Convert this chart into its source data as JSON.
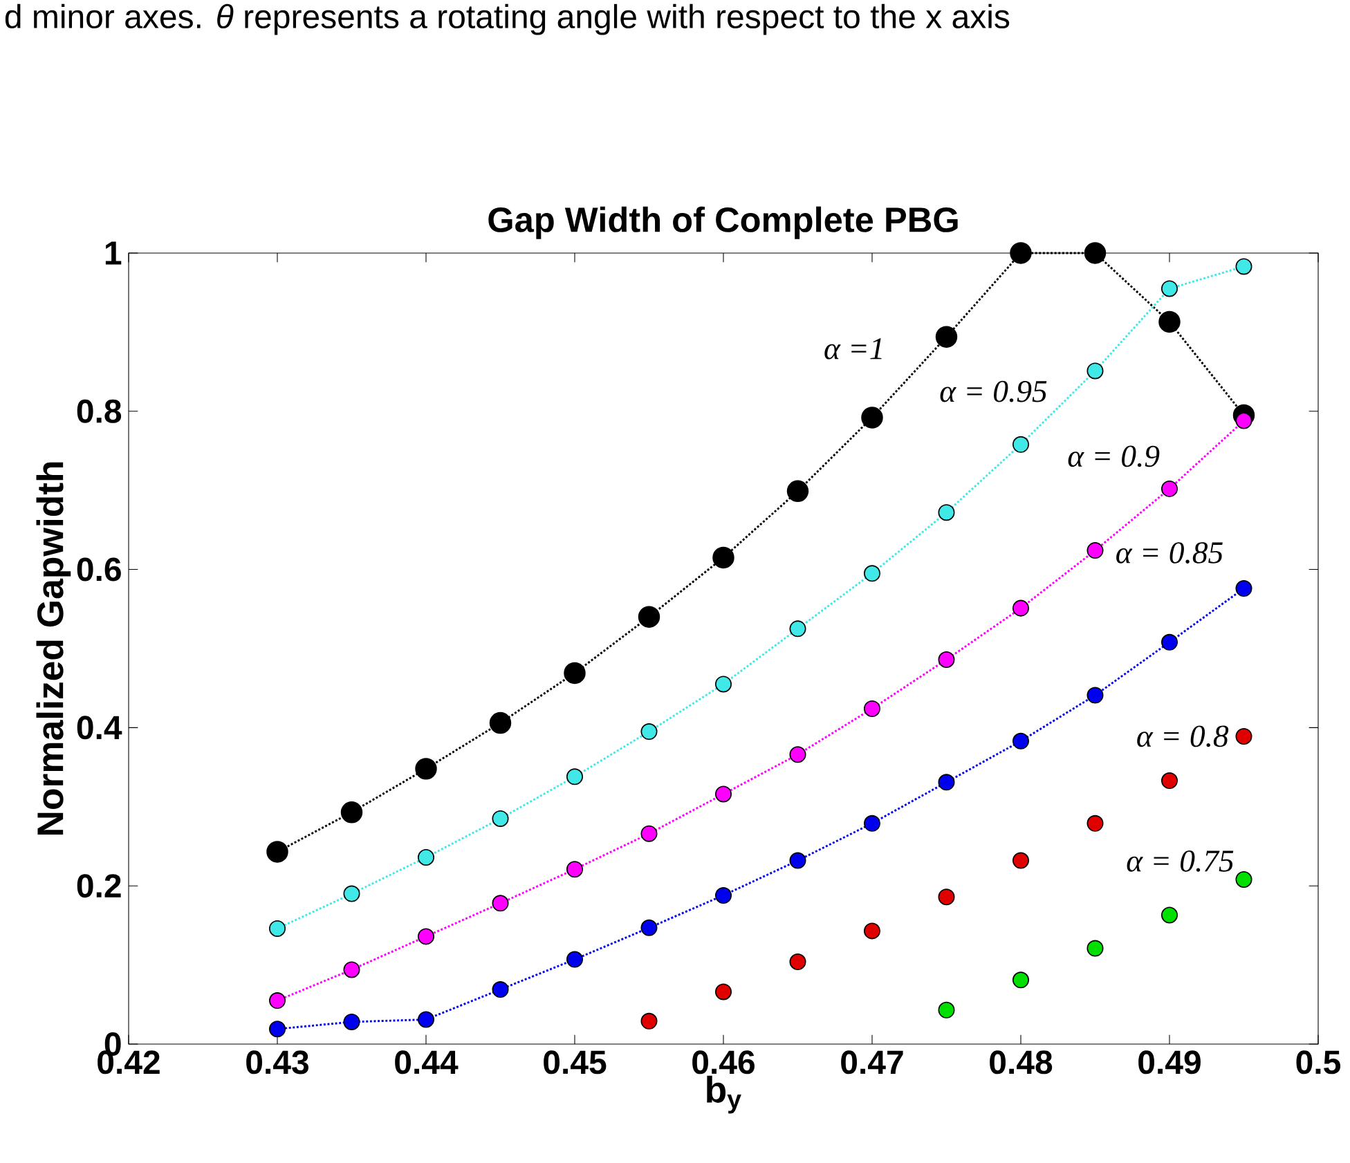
{
  "chart_data": {
    "type": "line",
    "title": "Gap Width of Complete PBG",
    "xlabel": "b$_{y}$",
    "ylabel": "Normalized Gapwidth",
    "annotations": [
      "d minor axes.  *θ* represents a rotating angle with respect to the x axis"
    ],
    "x": [
      0.43,
      0.435,
      0.44,
      0.445,
      0.45,
      0.455,
      0.46,
      0.465,
      0.47,
      0.475,
      0.48,
      0.485,
      0.49,
      0.495
    ],
    "series": [
      {
        "name": "α =1",
        "color": "#000000",
        "line_style": "dotted",
        "values": [
          0.243,
          0.293,
          0.348,
          0.406,
          0.469,
          0.54,
          0.615,
          0.699,
          0.792,
          0.894,
          1.0,
          1.0,
          0.913,
          0.795
        ]
      },
      {
        "name": "α = 0.95",
        "color": "#40e8e8",
        "line_style": "dotted",
        "values": [
          0.146,
          0.19,
          0.236,
          0.285,
          0.338,
          0.395,
          0.455,
          0.525,
          0.595,
          0.672,
          0.758,
          0.851,
          0.955,
          0.983
        ]
      },
      {
        "name": "α = 0.9",
        "color": "#ff00ff",
        "line_style": "dotted",
        "values": [
          0.055,
          0.094,
          0.136,
          0.178,
          0.221,
          0.266,
          0.316,
          0.366,
          0.424,
          0.486,
          0.551,
          0.624,
          0.702,
          0.788
        ]
      },
      {
        "name": "α = 0.85",
        "color": "#0000f0",
        "line_style": "dotted",
        "values": [
          0.019,
          0.028,
          0.031,
          0.069,
          0.107,
          0.147,
          0.188,
          0.232,
          0.279,
          0.331,
          0.383,
          0.441,
          0.508,
          0.576
        ]
      },
      {
        "name": "α = 0.8",
        "color": "#e00000",
        "type": "scatter",
        "values": [
          null,
          null,
          null,
          null,
          null,
          0.029,
          0.066,
          0.104,
          0.143,
          0.186,
          0.232,
          0.279,
          0.333,
          0.389
        ]
      },
      {
        "name": "α = 0.75",
        "color": "#00e000",
        "type": "scatter",
        "values": [
          null,
          null,
          null,
          null,
          null,
          null,
          null,
          null,
          null,
          0.043,
          0.081,
          0.121,
          0.163,
          0.208
        ]
      }
    ],
    "marker": "circle",
    "legend": false,
    "grid": false,
    "xlim": [
      0.42,
      0.5
    ],
    "xticks": [
      0.42,
      0.43,
      0.44,
      0.45,
      0.46,
      0.47,
      0.48,
      0.49,
      0.5
    ],
    "ylim": [
      0,
      1
    ],
    "yticks": [
      0,
      0.2,
      0.4,
      0.6,
      0.8,
      1
    ]
  }
}
